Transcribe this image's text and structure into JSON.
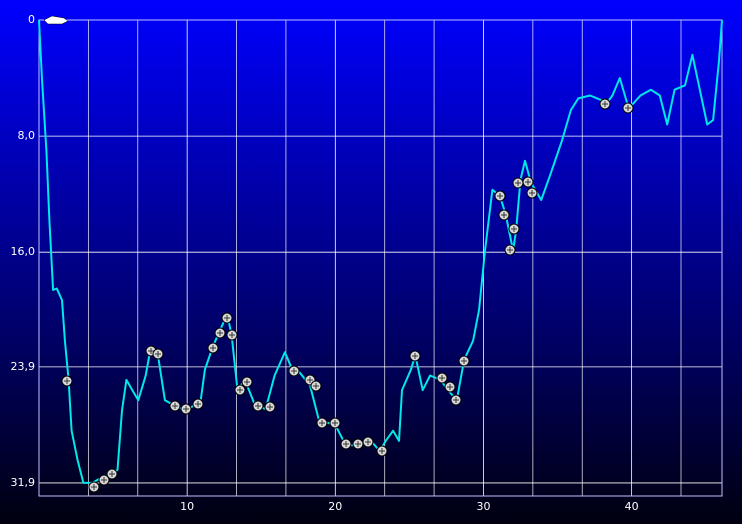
{
  "chart_data": {
    "type": "line",
    "x": [
      0,
      0.2,
      0.5,
      0.7,
      0.95,
      1.2,
      1.55,
      1.75,
      2.0,
      2.2,
      2.6,
      3.0,
      3.6,
      4.1,
      4.8,
      5.3,
      5.6,
      5.9,
      6.3,
      6.7,
      7.2,
      7.5,
      8.0,
      8.5,
      9.2,
      9.9,
      10.9,
      11.2,
      11.7,
      12.2,
      12.7,
      13.0,
      13.4,
      13.9,
      14.6,
      15.3,
      15.9,
      16.6,
      17.1,
      17.6,
      18.3,
      18.9,
      20.0,
      20.7,
      21.7,
      22.4,
      23.0,
      23.4,
      23.9,
      24.3,
      24.5,
      25.1,
      25.4,
      25.9,
      26.4,
      27.1,
      27.6,
      28.2,
      28.7,
      29.3,
      29.7,
      30.1,
      30.6,
      31.1,
      31.5,
      32.0,
      32.2,
      32.5,
      32.8,
      33.2,
      33.9,
      34.5,
      35.3,
      35.9,
      36.4,
      37.2,
      37.9,
      38.2,
      38.7,
      39.2,
      39.8,
      40.6,
      41.3,
      41.9,
      42.4,
      42.9,
      43.6,
      44.1,
      44.6,
      45.1,
      45.5,
      45.9,
      46.1
    ],
    "series": [
      {
        "color": "#00e8e8",
        "values": [
          0,
          4.1,
          9.0,
          13.8,
          18.6,
          18.5,
          19.3,
          22.1,
          24.8,
          28.3,
          30.3,
          31.9,
          31.9,
          31.6,
          31.3,
          31.0,
          26.9,
          24.8,
          25.5,
          26.2,
          24.5,
          22.8,
          22.9,
          26.2,
          26.6,
          26.9,
          26.3,
          24.1,
          22.6,
          21.4,
          20.3,
          21.7,
          25.5,
          24.8,
          26.6,
          26.8,
          24.5,
          22.9,
          24.1,
          24.3,
          25.2,
          27.6,
          27.9,
          29.3,
          29.3,
          29.0,
          29.7,
          29.0,
          28.3,
          29.0,
          25.5,
          24.1,
          23.1,
          25.5,
          24.5,
          24.8,
          25.5,
          26.2,
          23.4,
          22.1,
          20.0,
          15.9,
          11.7,
          12.1,
          13.4,
          15.9,
          14.5,
          11.0,
          9.7,
          11.2,
          12.4,
          10.7,
          8.3,
          6.2,
          5.4,
          5.2,
          5.5,
          5.9,
          5.2,
          4.0,
          6.1,
          5.2,
          4.8,
          5.2,
          7.2,
          4.8,
          4.5,
          2.4,
          4.8,
          7.2,
          6.9,
          2.8,
          0
        ]
      }
    ],
    "xlim": [
      0,
      46.1
    ],
    "xticks": [
      10,
      20,
      30,
      40
    ],
    "ylim": [
      0,
      32.8
    ],
    "yticks": [
      0,
      {
        "value": 8.0,
        "label": "8,0"
      },
      {
        "value": 16.0,
        "label": "16,0"
      },
      {
        "value": 23.9,
        "label": "23,9"
      },
      {
        "value": 31.9,
        "label": "31,9"
      }
    ],
    "inverted_y": true,
    "grid": true
  }
}
